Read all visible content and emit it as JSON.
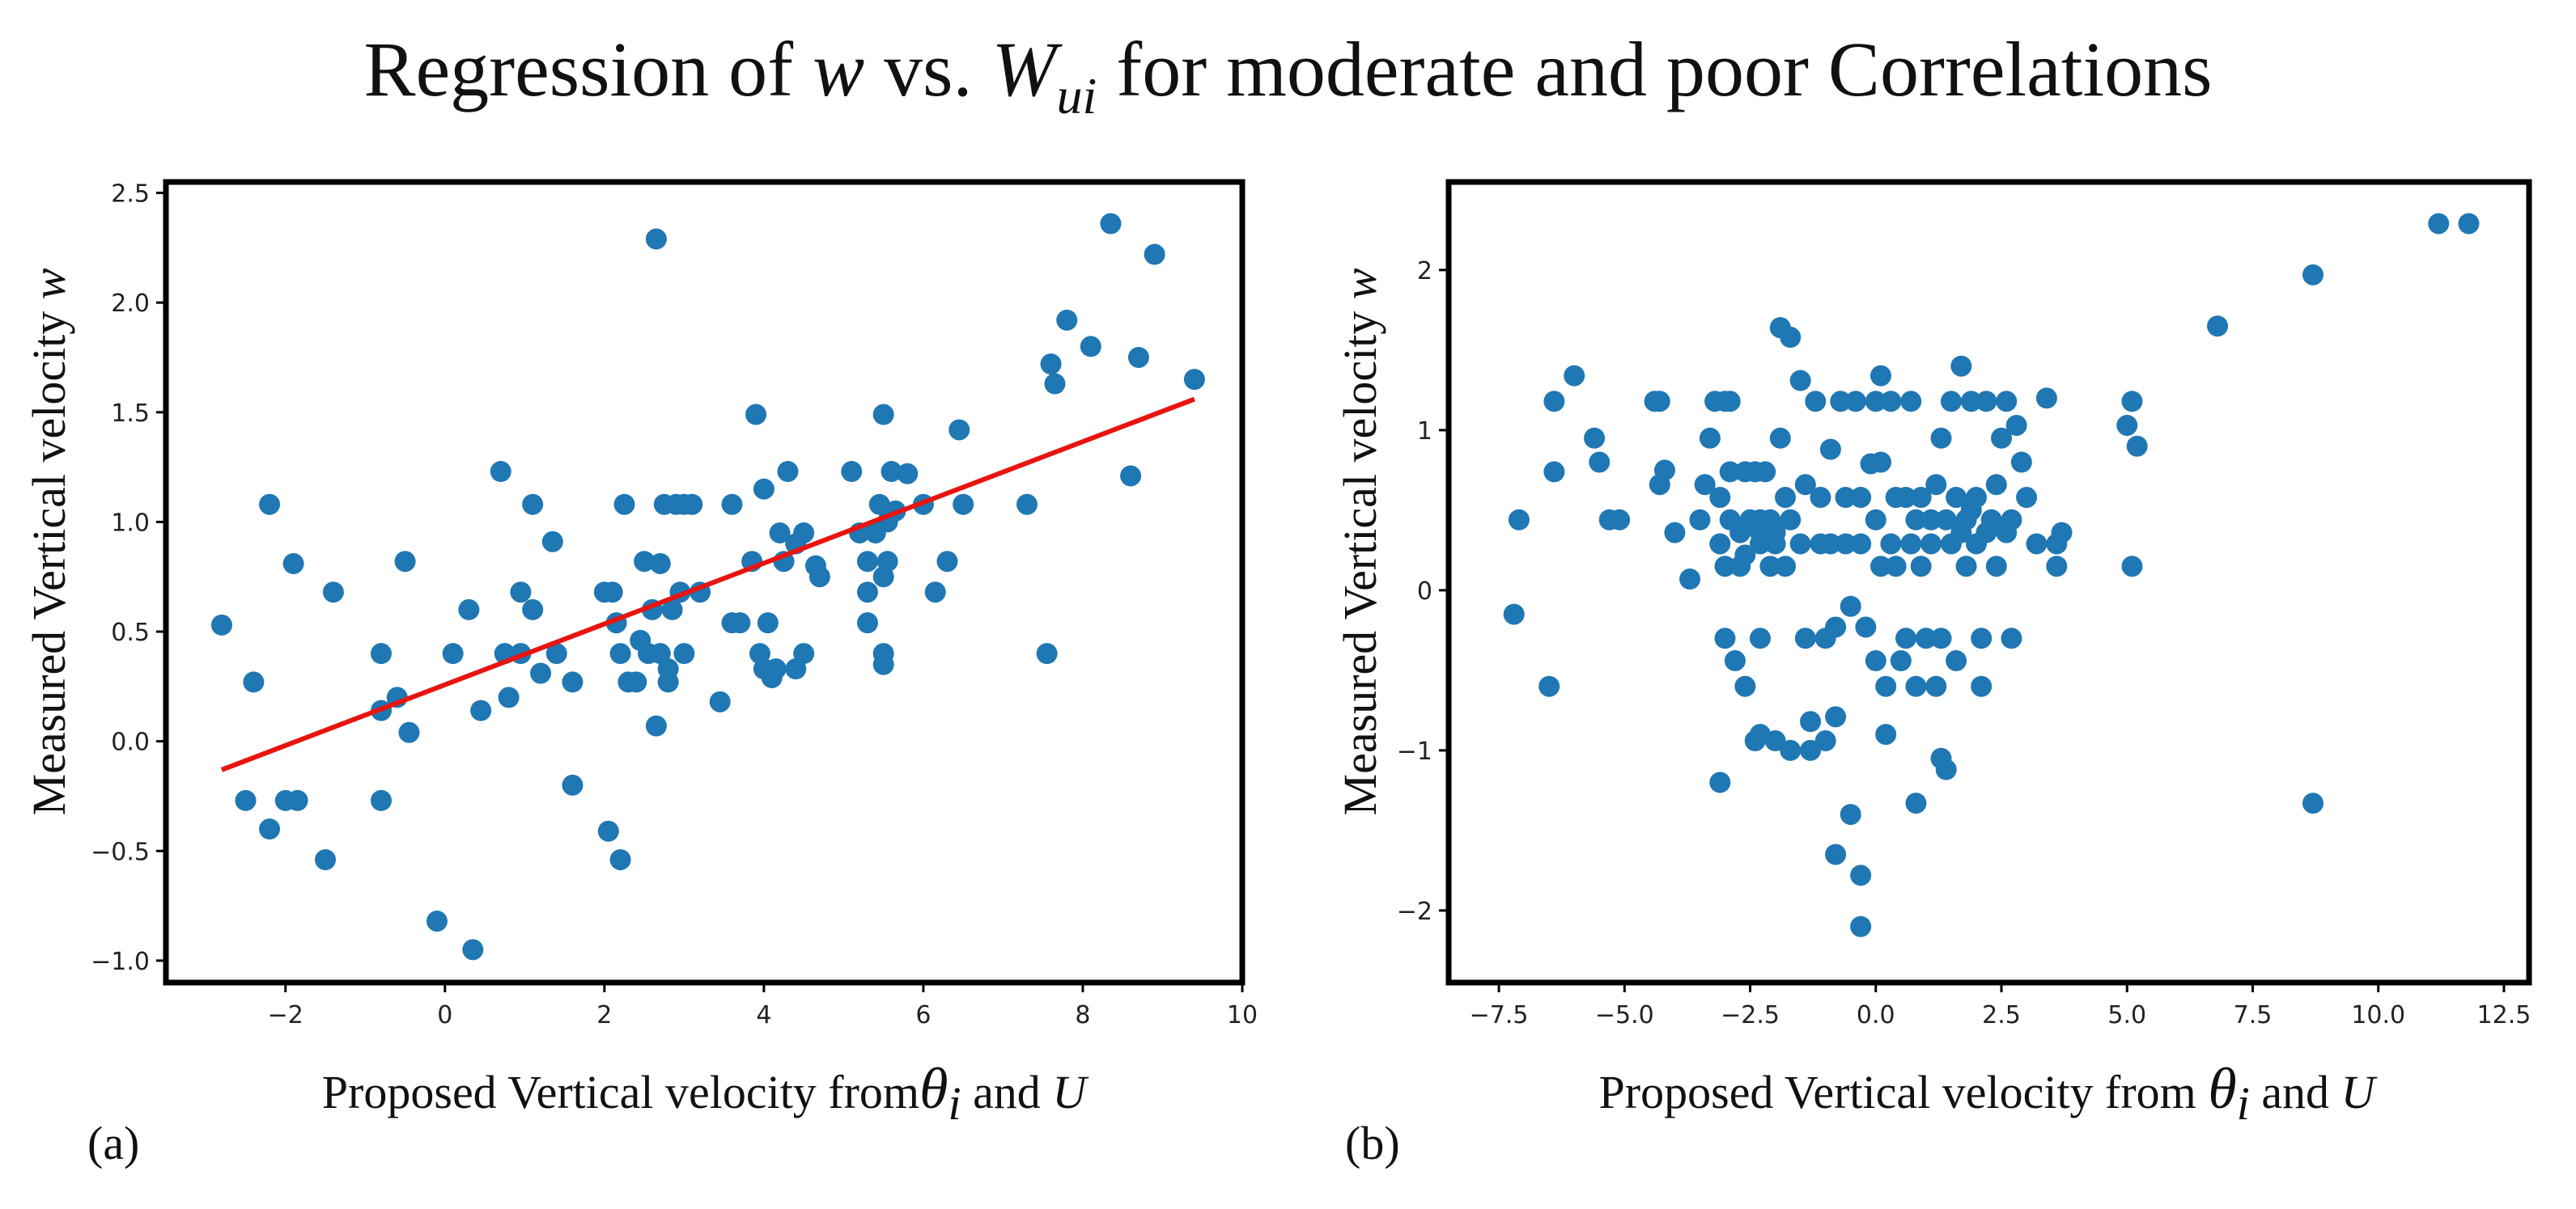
{
  "figure": {
    "title_prefix": "Regression of ",
    "title_var1": "w",
    "title_mid": " vs. ",
    "title_var2": "W",
    "title_sub": "ui",
    "title_suffix": " for moderate and poor Correlations",
    "marker_color": "#1f77b4",
    "fit_color": "#e8140f"
  },
  "chart_data": [
    {
      "type": "scatter",
      "panel": "(a)",
      "xlabel_prefix": "Proposed Vertical velocity from",
      "xlabel_theta": "θ",
      "xlabel_i": "i",
      "xlabel_mid": " and ",
      "xlabel_u": "U",
      "ylabel_prefix": "Measured Vertical velocity ",
      "ylabel_w": "w",
      "xlim": [
        -3.5,
        10.0
      ],
      "ylim": [
        -1.1,
        2.55
      ],
      "xticks": [
        -2,
        0,
        2,
        4,
        6,
        8,
        10
      ],
      "xtick_labels": [
        "−2",
        "0",
        "2",
        "4",
        "6",
        "8",
        "10"
      ],
      "yticks": [
        -1.0,
        -0.5,
        0.0,
        0.5,
        1.0,
        1.5,
        2.0,
        2.5
      ],
      "ytick_labels": [
        "−1.0",
        "−0.5",
        "0.0",
        "0.5",
        "1.0",
        "1.5",
        "2.0",
        "2.5"
      ],
      "fit_line": {
        "x": [
          -2.8,
          9.4
        ],
        "y": [
          -0.13,
          1.56
        ]
      },
      "points": [
        [
          -2.8,
          0.53
        ],
        [
          -2.5,
          -0.27
        ],
        [
          -2.4,
          0.27
        ],
        [
          -2.2,
          1.08
        ],
        [
          -2.2,
          -0.4
        ],
        [
          -2.0,
          -0.27
        ],
        [
          -1.85,
          -0.27
        ],
        [
          -1.9,
          0.81
        ],
        [
          -1.5,
          -0.54
        ],
        [
          -1.4,
          0.68
        ],
        [
          -0.8,
          0.4
        ],
        [
          -0.8,
          0.14
        ],
        [
          -0.8,
          -0.27
        ],
        [
          -0.6,
          0.2
        ],
        [
          -0.5,
          0.82
        ],
        [
          -0.45,
          0.04
        ],
        [
          -0.1,
          -0.82
        ],
        [
          0.1,
          0.4
        ],
        [
          0.3,
          0.6
        ],
        [
          0.35,
          -0.95
        ],
        [
          0.45,
          0.14
        ],
        [
          0.7,
          1.23
        ],
        [
          0.75,
          0.4
        ],
        [
          0.8,
          0.2
        ],
        [
          0.95,
          0.68
        ],
        [
          0.95,
          0.4
        ],
        [
          1.1,
          1.08
        ],
        [
          1.1,
          0.6
        ],
        [
          1.2,
          0.31
        ],
        [
          1.35,
          0.91
        ],
        [
          1.4,
          0.4
        ],
        [
          1.6,
          0.27
        ],
        [
          1.6,
          -0.2
        ],
        [
          2.0,
          0.68
        ],
        [
          2.05,
          -0.41
        ],
        [
          2.1,
          0.68
        ],
        [
          2.15,
          0.54
        ],
        [
          2.2,
          -0.54
        ],
        [
          2.25,
          1.08
        ],
        [
          2.2,
          0.4
        ],
        [
          2.3,
          0.27
        ],
        [
          2.4,
          0.27
        ],
        [
          2.45,
          0.46
        ],
        [
          2.5,
          0.82
        ],
        [
          2.55,
          0.4
        ],
        [
          2.6,
          0.6
        ],
        [
          2.65,
          0.07
        ],
        [
          2.65,
          2.29
        ],
        [
          2.7,
          0.81
        ],
        [
          2.7,
          0.4
        ],
        [
          2.75,
          1.08
        ],
        [
          2.8,
          0.33
        ],
        [
          2.8,
          0.27
        ],
        [
          2.85,
          0.6
        ],
        [
          2.9,
          1.08
        ],
        [
          2.95,
          0.68
        ],
        [
          3.0,
          1.08
        ],
        [
          3.0,
          0.4
        ],
        [
          3.2,
          0.68
        ],
        [
          3.1,
          1.08
        ],
        [
          3.45,
          0.18
        ],
        [
          3.6,
          1.08
        ],
        [
          3.6,
          0.54
        ],
        [
          3.7,
          0.54
        ],
        [
          3.9,
          1.49
        ],
        [
          3.85,
          0.82
        ],
        [
          3.95,
          0.4
        ],
        [
          4.0,
          0.33
        ],
        [
          4.0,
          1.15
        ],
        [
          4.05,
          0.54
        ],
        [
          4.1,
          0.29
        ],
        [
          4.15,
          0.33
        ],
        [
          4.2,
          0.95
        ],
        [
          4.25,
          0.82
        ],
        [
          4.3,
          1.23
        ],
        [
          4.4,
          0.9
        ],
        [
          4.5,
          0.95
        ],
        [
          4.5,
          0.4
        ],
        [
          4.4,
          0.33
        ],
        [
          4.65,
          0.8
        ],
        [
          4.7,
          0.75
        ],
        [
          5.1,
          1.23
        ],
        [
          5.2,
          0.95
        ],
        [
          5.3,
          0.82
        ],
        [
          5.3,
          0.54
        ],
        [
          5.3,
          0.68
        ],
        [
          5.4,
          0.95
        ],
        [
          5.45,
          1.08
        ],
        [
          5.5,
          1.49
        ],
        [
          5.5,
          0.4
        ],
        [
          5.5,
          0.35
        ],
        [
          5.55,
          0.82
        ],
        [
          5.55,
          1.0
        ],
        [
          5.5,
          0.75
        ],
        [
          5.6,
          1.23
        ],
        [
          5.65,
          1.05
        ],
        [
          5.8,
          1.22
        ],
        [
          6.0,
          1.08
        ],
        [
          6.15,
          0.68
        ],
        [
          6.3,
          0.82
        ],
        [
          6.45,
          1.42
        ],
        [
          6.5,
          1.08
        ],
        [
          7.3,
          1.08
        ],
        [
          7.55,
          0.4
        ],
        [
          7.6,
          1.72
        ],
        [
          7.65,
          1.63
        ],
        [
          7.8,
          1.92
        ],
        [
          8.1,
          1.8
        ],
        [
          8.35,
          2.36
        ],
        [
          8.6,
          1.21
        ],
        [
          8.7,
          1.75
        ],
        [
          8.9,
          2.22
        ],
        [
          9.4,
          1.65
        ]
      ]
    },
    {
      "type": "scatter",
      "panel": "(b)",
      "xlabel_prefix": "Proposed Vertical velocity from ",
      "xlabel_theta": "θ",
      "xlabel_i": "i",
      "xlabel_mid": " and ",
      "xlabel_u": "U",
      "ylabel_prefix": "Measured Vertical velocity ",
      "ylabel_w": "w",
      "xlim": [
        -8.5,
        13.0
      ],
      "ylim": [
        -2.45,
        2.55
      ],
      "xticks": [
        -7.5,
        -5.0,
        -2.5,
        0.0,
        2.5,
        5.0,
        7.5,
        10.0,
        12.5
      ],
      "xtick_labels": [
        "−7.5",
        "−5.0",
        "−2.5",
        "0.0",
        "2.5",
        "5.0",
        "7.5",
        "10.0",
        "12.5"
      ],
      "yticks": [
        -2,
        -1,
        0,
        1,
        2
      ],
      "ytick_labels": [
        "−2",
        "−1",
        "0",
        "1",
        "2"
      ],
      "points": [
        [
          -7.2,
          -0.15
        ],
        [
          -7.1,
          0.44
        ],
        [
          -6.5,
          -0.6
        ],
        [
          -6.4,
          1.18
        ],
        [
          -6.4,
          0.74
        ],
        [
          -6.0,
          1.34
        ],
        [
          -5.6,
          0.95
        ],
        [
          -5.5,
          0.8
        ],
        [
          -5.3,
          0.44
        ],
        [
          -5.1,
          0.44
        ],
        [
          -4.4,
          1.18
        ],
        [
          -4.3,
          1.18
        ],
        [
          -4.3,
          0.66
        ],
        [
          -4.2,
          0.75
        ],
        [
          -4.0,
          0.36
        ],
        [
          -3.7,
          0.07
        ],
        [
          -3.5,
          0.44
        ],
        [
          -3.4,
          0.66
        ],
        [
          -3.3,
          0.95
        ],
        [
          -3.2,
          1.18
        ],
        [
          -3.1,
          0.58
        ],
        [
          -3.1,
          0.29
        ],
        [
          -3.0,
          1.18
        ],
        [
          -3.0,
          0.15
        ],
        [
          -3.0,
          -0.3
        ],
        [
          -3.1,
          -1.2
        ],
        [
          -2.9,
          0.74
        ],
        [
          -2.9,
          0.44
        ],
        [
          -2.9,
          1.18
        ],
        [
          -2.8,
          -0.44
        ],
        [
          -2.7,
          0.36
        ],
        [
          -2.7,
          0.15
        ],
        [
          -2.6,
          0.74
        ],
        [
          -2.6,
          0.22
        ],
        [
          -2.6,
          -0.6
        ],
        [
          -2.5,
          0.44
        ],
        [
          -2.4,
          0.74
        ],
        [
          -2.3,
          0.44
        ],
        [
          -2.3,
          0.36
        ],
        [
          -2.3,
          0.29
        ],
        [
          -2.3,
          -0.3
        ],
        [
          -2.4,
          -0.94
        ],
        [
          -2.3,
          -0.9
        ],
        [
          -2.2,
          0.74
        ],
        [
          -2.1,
          0.44
        ],
        [
          -2.1,
          0.15
        ],
        [
          -2.0,
          0.36
        ],
        [
          -2.0,
          0.29
        ],
        [
          -2.0,
          -0.94
        ],
        [
          -1.9,
          1.64
        ],
        [
          -1.9,
          0.95
        ],
        [
          -1.8,
          0.58
        ],
        [
          -1.8,
          0.15
        ],
        [
          -1.7,
          1.58
        ],
        [
          -1.7,
          0.44
        ],
        [
          -1.7,
          -1.0
        ],
        [
          -1.5,
          1.31
        ],
        [
          -1.5,
          0.29
        ],
        [
          -1.4,
          0.66
        ],
        [
          -1.4,
          -0.3
        ],
        [
          -1.3,
          -0.82
        ],
        [
          -1.3,
          -1.0
        ],
        [
          -1.2,
          1.18
        ],
        [
          -1.1,
          0.58
        ],
        [
          -1.1,
          0.29
        ],
        [
          -1.0,
          -0.94
        ],
        [
          -1.0,
          -0.3
        ],
        [
          -0.9,
          0.88
        ],
        [
          -0.9,
          0.29
        ],
        [
          -0.8,
          -0.23
        ],
        [
          -0.8,
          -0.79
        ],
        [
          -0.8,
          -1.65
        ],
        [
          -0.7,
          1.18
        ],
        [
          -0.6,
          0.58
        ],
        [
          -0.6,
          0.29
        ],
        [
          -0.5,
          -0.1
        ],
        [
          -0.5,
          -1.4
        ],
        [
          -0.4,
          1.18
        ],
        [
          -0.3,
          0.58
        ],
        [
          -0.3,
          0.29
        ],
        [
          -0.3,
          -1.78
        ],
        [
          -0.3,
          -2.1
        ],
        [
          -0.2,
          -0.23
        ],
        [
          -0.1,
          0.79
        ],
        [
          0.0,
          1.18
        ],
        [
          0.0,
          0.44
        ],
        [
          0.0,
          -0.44
        ],
        [
          0.1,
          1.34
        ],
        [
          0.1,
          0.8
        ],
        [
          0.1,
          0.15
        ],
        [
          0.2,
          -0.6
        ],
        [
          0.2,
          -0.9
        ],
        [
          0.3,
          1.18
        ],
        [
          0.3,
          0.29
        ],
        [
          0.4,
          0.58
        ],
        [
          0.4,
          0.15
        ],
        [
          0.5,
          -0.44
        ],
        [
          0.6,
          0.58
        ],
        [
          0.6,
          -0.3
        ],
        [
          0.7,
          1.18
        ],
        [
          0.7,
          0.29
        ],
        [
          0.8,
          0.44
        ],
        [
          0.8,
          -0.6
        ],
        [
          0.8,
          -1.33
        ],
        [
          0.9,
          0.58
        ],
        [
          0.9,
          0.15
        ],
        [
          1.0,
          -0.3
        ],
        [
          1.1,
          0.44
        ],
        [
          1.1,
          0.29
        ],
        [
          1.2,
          0.66
        ],
        [
          1.2,
          -0.6
        ],
        [
          1.3,
          0.95
        ],
        [
          1.3,
          -0.3
        ],
        [
          1.3,
          -1.05
        ],
        [
          1.4,
          0.44
        ],
        [
          1.4,
          -1.12
        ],
        [
          1.5,
          1.18
        ],
        [
          1.5,
          0.29
        ],
        [
          1.6,
          0.58
        ],
        [
          1.6,
          -0.44
        ],
        [
          1.7,
          1.4
        ],
        [
          1.7,
          0.36
        ],
        [
          1.8,
          0.44
        ],
        [
          1.8,
          0.15
        ],
        [
          1.9,
          1.18
        ],
        [
          1.9,
          0.5
        ],
        [
          2.0,
          0.58
        ],
        [
          2.0,
          0.29
        ],
        [
          2.1,
          -0.3
        ],
        [
          2.1,
          -0.6
        ],
        [
          2.2,
          1.18
        ],
        [
          2.2,
          0.36
        ],
        [
          2.3,
          0.44
        ],
        [
          2.4,
          0.66
        ],
        [
          2.4,
          0.15
        ],
        [
          2.5,
          0.95
        ],
        [
          2.6,
          1.18
        ],
        [
          2.6,
          0.36
        ],
        [
          2.7,
          0.44
        ],
        [
          2.7,
          -0.3
        ],
        [
          2.8,
          1.03
        ],
        [
          2.9,
          0.8
        ],
        [
          3.0,
          0.58
        ],
        [
          3.2,
          0.29
        ],
        [
          3.4,
          1.2
        ],
        [
          3.6,
          0.15
        ],
        [
          3.6,
          0.29
        ],
        [
          3.7,
          0.36
        ],
        [
          5.0,
          1.03
        ],
        [
          5.1,
          1.18
        ],
        [
          5.1,
          0.15
        ],
        [
          5.2,
          0.9
        ],
        [
          6.8,
          1.65
        ],
        [
          8.7,
          1.97
        ],
        [
          8.7,
          -1.33
        ],
        [
          11.2,
          2.29
        ],
        [
          11.8,
          2.29
        ]
      ]
    }
  ]
}
